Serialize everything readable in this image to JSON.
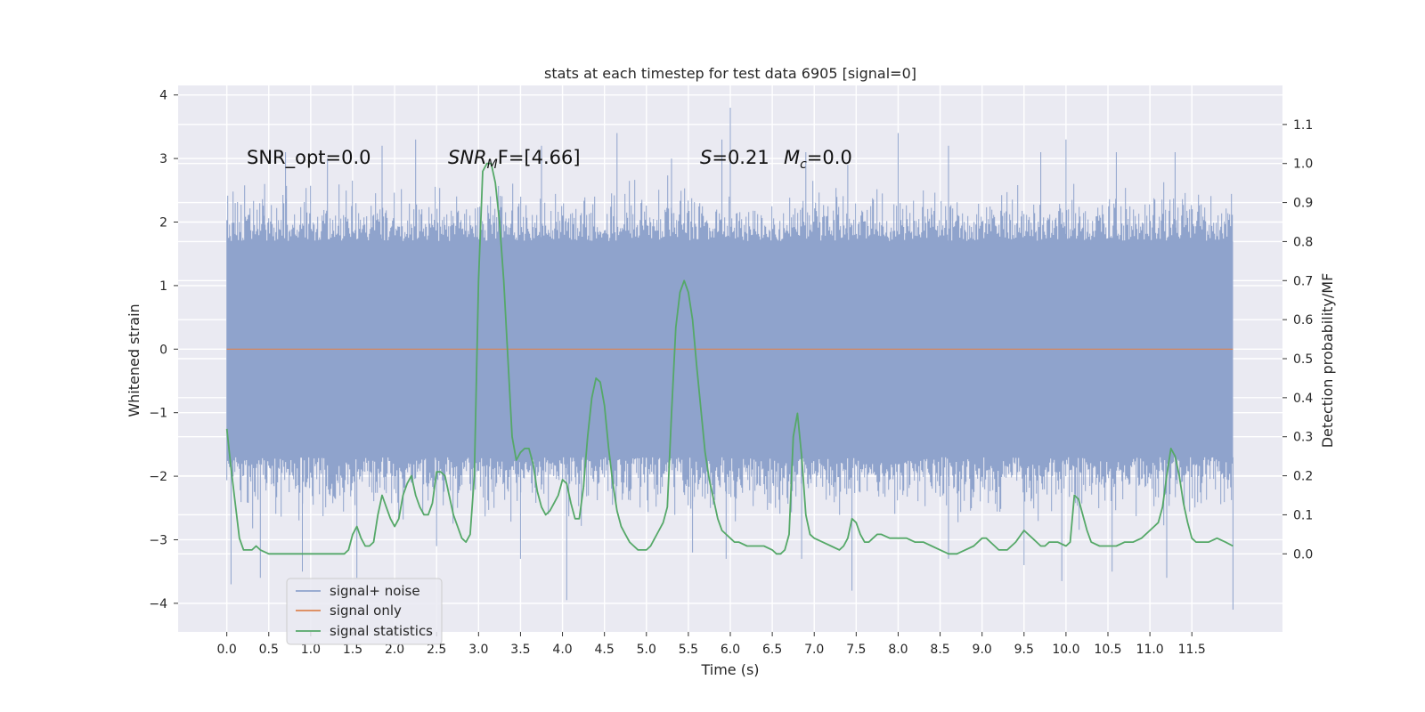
{
  "chart_data": {
    "type": "line",
    "title": "stats at each timestep for test data 6905 [signal=0]",
    "xlabel": "Time (s)",
    "ylabel": "Whitened strain",
    "ylabel_right": "Detection probability/MF",
    "xlim": [
      -0.58,
      12.58
    ],
    "ylim": [
      -4.45,
      4.15
    ],
    "ylim_right": [
      -0.2,
      1.2
    ],
    "x_ticks": [
      "0.0",
      "0.5",
      "1.0",
      "1.5",
      "2.0",
      "2.5",
      "3.0",
      "3.5",
      "4.0",
      "4.5",
      "5.0",
      "5.5",
      "6.0",
      "6.5",
      "7.0",
      "7.5",
      "8.0",
      "8.5",
      "9.0",
      "9.5",
      "10.0",
      "10.5",
      "11.0",
      "11.5"
    ],
    "y_ticks": [
      "4",
      "3",
      "2",
      "1",
      "0",
      "−1",
      "−2",
      "−3",
      "−4"
    ],
    "y_right_ticks": [
      "1.1",
      "1.0",
      "0.9",
      "0.8",
      "0.7",
      "0.6",
      "0.5",
      "0.4",
      "0.3",
      "0.2",
      "0.1",
      "0.0"
    ],
    "grid": true,
    "legend_position": "lower-left",
    "annotations": {
      "snr_opt": "SNR_opt=0.0",
      "snr_mf_base": "SNR",
      "snr_mf_sub": "M",
      "snr_mf_tail": "F=[4.66]",
      "s_label": "S",
      "s_value": "=0.21",
      "mc_label": "M",
      "mc_sub": "c",
      "mc_value": "=0.0"
    },
    "series": [
      {
        "name": "signal+ noise",
        "color": "#8fa3cc",
        "x_range": [
          0.0,
          11.99
        ],
        "band_core": [
          -1.7,
          1.7
        ],
        "spike_peaks_high": [
          [
            0.1,
            2.3
          ],
          [
            0.45,
            2.6
          ],
          [
            0.7,
            3.1
          ],
          [
            1.2,
            3.0
          ],
          [
            1.85,
            3.2
          ],
          [
            2.25,
            3.3
          ],
          [
            3.75,
            3.2
          ],
          [
            4.65,
            3.4
          ],
          [
            5.3,
            3.0
          ],
          [
            5.9,
            3.3
          ],
          [
            6.0,
            3.8
          ],
          [
            6.9,
            3.1
          ],
          [
            7.4,
            2.9
          ],
          [
            8.0,
            3.4
          ],
          [
            8.6,
            3.2
          ],
          [
            9.7,
            3.1
          ],
          [
            10.0,
            3.3
          ],
          [
            10.6,
            3.1
          ],
          [
            11.3,
            3.1
          ]
        ],
        "spike_peaks_low": [
          [
            0.05,
            -3.7
          ],
          [
            0.4,
            -3.6
          ],
          [
            0.9,
            -3.5
          ],
          [
            1.55,
            -3.6
          ],
          [
            2.5,
            -3.1
          ],
          [
            3.5,
            -3.3
          ],
          [
            4.05,
            -3.95
          ],
          [
            5.55,
            -3.2
          ],
          [
            5.95,
            -3.3
          ],
          [
            6.85,
            -3.3
          ],
          [
            7.45,
            -3.8
          ],
          [
            8.6,
            -3.3
          ],
          [
            9.5,
            -3.4
          ],
          [
            9.95,
            -3.65
          ],
          [
            10.55,
            -3.5
          ],
          [
            11.2,
            -3.6
          ],
          [
            11.99,
            -4.1
          ]
        ]
      },
      {
        "name": "signal only",
        "color": "#dd8452",
        "x": [
          0.0,
          11.99
        ],
        "y": [
          0.0,
          0.0
        ]
      },
      {
        "name": "signal statistics",
        "color": "#55a868",
        "axis": "right",
        "x": [
          0.0,
          0.05,
          0.1,
          0.15,
          0.2,
          0.25,
          0.3,
          0.35,
          0.4,
          0.5,
          0.6,
          0.7,
          0.8,
          0.9,
          1.0,
          1.1,
          1.2,
          1.3,
          1.4,
          1.45,
          1.5,
          1.55,
          1.6,
          1.65,
          1.7,
          1.75,
          1.8,
          1.85,
          1.9,
          1.95,
          2.0,
          2.05,
          2.1,
          2.15,
          2.2,
          2.25,
          2.3,
          2.35,
          2.4,
          2.45,
          2.5,
          2.55,
          2.6,
          2.65,
          2.7,
          2.75,
          2.8,
          2.85,
          2.9,
          2.95,
          3.0,
          3.05,
          3.1,
          3.15,
          3.2,
          3.25,
          3.3,
          3.35,
          3.4,
          3.45,
          3.5,
          3.55,
          3.6,
          3.65,
          3.7,
          3.75,
          3.8,
          3.85,
          3.9,
          3.95,
          4.0,
          4.05,
          4.1,
          4.15,
          4.2,
          4.25,
          4.3,
          4.35,
          4.4,
          4.45,
          4.5,
          4.55,
          4.6,
          4.65,
          4.7,
          4.75,
          4.8,
          4.85,
          4.9,
          4.95,
          5.0,
          5.05,
          5.1,
          5.15,
          5.2,
          5.25,
          5.3,
          5.35,
          5.4,
          5.45,
          5.5,
          5.55,
          5.6,
          5.65,
          5.7,
          5.75,
          5.8,
          5.85,
          5.9,
          5.95,
          6.0,
          6.05,
          6.1,
          6.2,
          6.3,
          6.4,
          6.5,
          6.55,
          6.6,
          6.65,
          6.7,
          6.75,
          6.8,
          6.85,
          6.9,
          6.95,
          7.0,
          7.1,
          7.2,
          7.3,
          7.35,
          7.4,
          7.45,
          7.5,
          7.55,
          7.6,
          7.65,
          7.7,
          7.75,
          7.8,
          7.9,
          8.0,
          8.1,
          8.2,
          8.3,
          8.4,
          8.5,
          8.6,
          8.7,
          8.8,
          8.9,
          9.0,
          9.05,
          9.1,
          9.15,
          9.2,
          9.3,
          9.4,
          9.5,
          9.6,
          9.7,
          9.75,
          9.8,
          9.9,
          10.0,
          10.05,
          10.1,
          10.15,
          10.2,
          10.25,
          10.3,
          10.4,
          10.5,
          10.6,
          10.7,
          10.8,
          10.9,
          11.0,
          11.05,
          11.1,
          11.15,
          11.2,
          11.25,
          11.3,
          11.35,
          11.4,
          11.45,
          11.5,
          11.55,
          11.6,
          11.7,
          11.8,
          11.9,
          11.99
        ],
        "y": [
          0.32,
          0.22,
          0.13,
          0.04,
          0.01,
          0.01,
          0.01,
          0.02,
          0.01,
          0.0,
          0.0,
          0.0,
          0.0,
          0.0,
          0.0,
          0.0,
          0.0,
          0.0,
          0.0,
          0.01,
          0.05,
          0.07,
          0.04,
          0.02,
          0.02,
          0.03,
          0.1,
          0.15,
          0.12,
          0.09,
          0.07,
          0.09,
          0.15,
          0.18,
          0.2,
          0.15,
          0.12,
          0.1,
          0.1,
          0.13,
          0.21,
          0.21,
          0.2,
          0.15,
          0.1,
          0.07,
          0.04,
          0.03,
          0.05,
          0.2,
          0.7,
          0.98,
          1.0,
          1.0,
          0.95,
          0.85,
          0.7,
          0.5,
          0.3,
          0.24,
          0.26,
          0.27,
          0.27,
          0.23,
          0.16,
          0.12,
          0.1,
          0.11,
          0.13,
          0.15,
          0.19,
          0.18,
          0.13,
          0.09,
          0.09,
          0.17,
          0.3,
          0.4,
          0.45,
          0.44,
          0.38,
          0.27,
          0.18,
          0.11,
          0.07,
          0.05,
          0.03,
          0.02,
          0.01,
          0.01,
          0.01,
          0.02,
          0.04,
          0.06,
          0.08,
          0.12,
          0.36,
          0.58,
          0.67,
          0.7,
          0.67,
          0.6,
          0.48,
          0.37,
          0.26,
          0.19,
          0.14,
          0.09,
          0.06,
          0.05,
          0.04,
          0.03,
          0.03,
          0.02,
          0.02,
          0.02,
          0.01,
          0.0,
          0.0,
          0.01,
          0.05,
          0.3,
          0.36,
          0.25,
          0.1,
          0.05,
          0.04,
          0.03,
          0.02,
          0.01,
          0.02,
          0.04,
          0.09,
          0.08,
          0.05,
          0.03,
          0.03,
          0.04,
          0.05,
          0.05,
          0.04,
          0.04,
          0.04,
          0.03,
          0.03,
          0.02,
          0.01,
          0.0,
          0.0,
          0.01,
          0.02,
          0.04,
          0.04,
          0.03,
          0.02,
          0.01,
          0.01,
          0.03,
          0.06,
          0.04,
          0.02,
          0.02,
          0.03,
          0.03,
          0.02,
          0.03,
          0.15,
          0.14,
          0.1,
          0.06,
          0.03,
          0.02,
          0.02,
          0.02,
          0.03,
          0.03,
          0.04,
          0.06,
          0.07,
          0.08,
          0.12,
          0.2,
          0.27,
          0.25,
          0.2,
          0.13,
          0.08,
          0.04,
          0.03,
          0.03,
          0.03,
          0.04,
          0.03,
          0.02
        ]
      }
    ]
  }
}
